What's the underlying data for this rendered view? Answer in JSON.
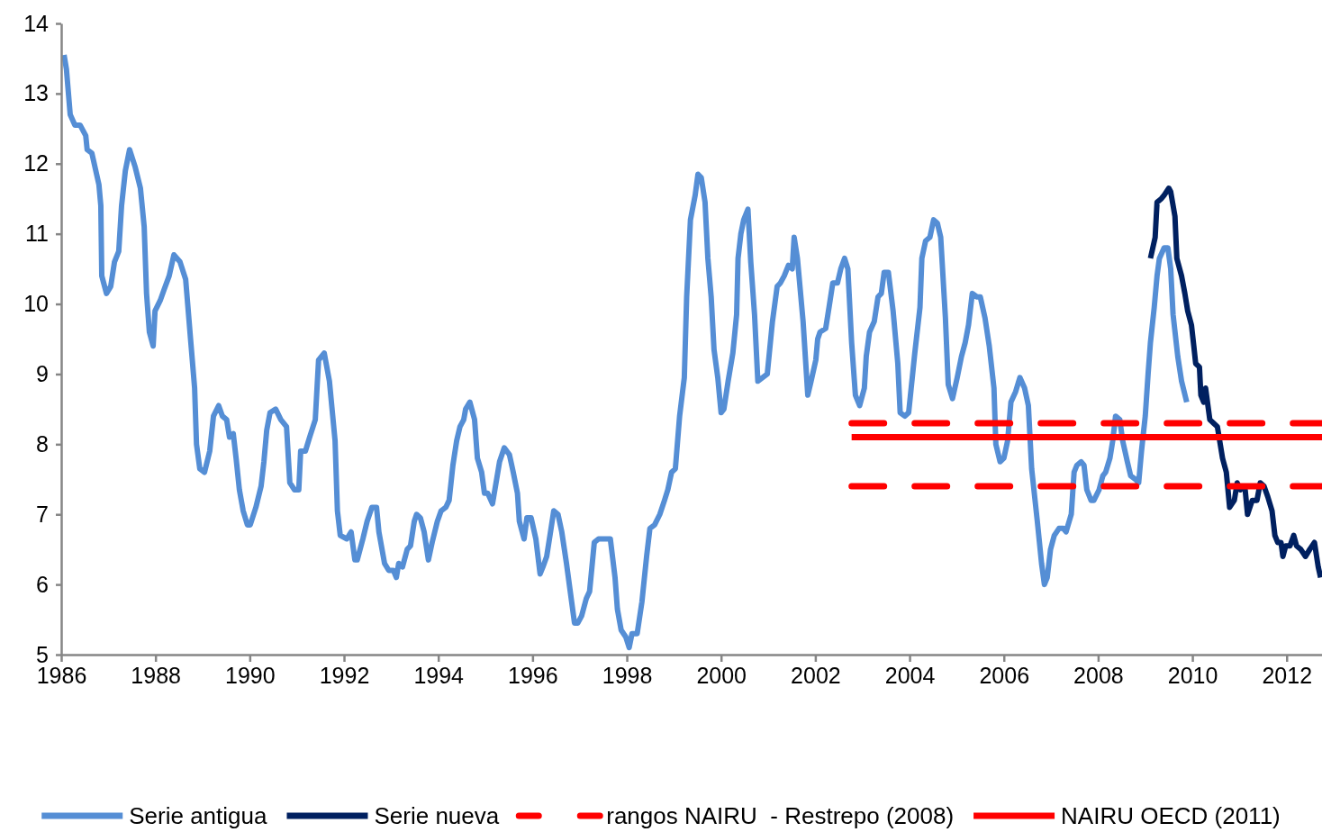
{
  "chart_data": {
    "type": "line",
    "xlim": [
      1986,
      2012.75
    ],
    "xticks": [
      1986,
      1988,
      1990,
      1992,
      1994,
      1996,
      1998,
      2000,
      2002,
      2004,
      2006,
      2008,
      2010,
      2012
    ],
    "ylim": [
      5,
      14
    ],
    "yticks": [
      5,
      6,
      7,
      8,
      9,
      10,
      11,
      12,
      13,
      14
    ],
    "grid": false,
    "legend": "bottom",
    "marker": "none",
    "series": [
      {
        "name": "Serie antigua",
        "color": "#558ed5",
        "line_style": "solid",
        "x": [
          1986.06,
          1986.11,
          1986.19,
          1986.29,
          1986.4,
          1986.52,
          1986.55,
          1986.65,
          1986.8,
          1986.84,
          1986.86,
          1986.96,
          1987.05,
          1987.13,
          1987.22,
          1987.28,
          1987.36,
          1987.45,
          1987.57,
          1987.68,
          1987.76,
          1987.81,
          1987.87,
          1987.95,
          1987.99,
          1988.1,
          1988.18,
          1988.29,
          1988.39,
          1988.52,
          1988.64,
          1988.75,
          1988.83,
          1988.87,
          1988.94,
          1989.04,
          1989.15,
          1989.23,
          1989.34,
          1989.42,
          1989.51,
          1989.57,
          1989.65,
          1989.71,
          1989.78,
          1989.86,
          1989.95,
          1990.01,
          1990.13,
          1990.24,
          1990.3,
          1990.36,
          1990.43,
          1990.55,
          1990.66,
          1990.78,
          1990.85,
          1990.95,
          1991.04,
          1991.08,
          1991.18,
          1991.27,
          1991.39,
          1991.46,
          1991.58,
          1991.69,
          1991.81,
          1991.86,
          1991.92,
          1992.06,
          1992.15,
          1992.23,
          1992.28,
          1992.4,
          1992.49,
          1992.59,
          1992.69,
          1992.74,
          1992.86,
          1992.95,
          1993.05,
          1993.11,
          1993.16,
          1993.24,
          1993.34,
          1993.41,
          1993.49,
          1993.54,
          1993.62,
          1993.7,
          1993.79,
          1993.87,
          1993.98,
          1994.06,
          1994.16,
          1994.23,
          1994.31,
          1994.39,
          1994.46,
          1994.54,
          1994.58,
          1994.67,
          1994.77,
          1994.83,
          1994.92,
          1994.98,
          1995.05,
          1995.15,
          1995.25,
          1995.3,
          1995.4,
          1995.51,
          1995.59,
          1995.68,
          1995.72,
          1995.82,
          1995.88,
          1995.97,
          1996.07,
          1996.16,
          1996.22,
          1996.3,
          1996.37,
          1996.45,
          1996.54,
          1996.62,
          1996.72,
          1996.79,
          1996.89,
          1996.96,
          1997.04,
          1997.14,
          1997.21,
          1997.31,
          1997.4,
          1997.56,
          1997.65,
          1997.75,
          1997.8,
          1997.88,
          1997.98,
          1998.05,
          1998.11,
          1998.22,
          1998.32,
          1998.42,
          1998.49,
          1998.59,
          1998.7,
          1998.8,
          1998.87,
          1998.95,
          1999.03,
          1999.12,
          1999.22,
          1999.27,
          1999.35,
          1999.45,
          1999.51,
          1999.58,
          1999.66,
          1999.72,
          1999.79,
          1999.85,
          1999.93,
          2000.0,
          2000.06,
          2000.15,
          2000.25,
          2000.33,
          2000.36,
          2000.42,
          2000.48,
          2000.57,
          2000.63,
          2000.71,
          2000.78,
          2000.88,
          2000.98,
          2001.09,
          2001.19,
          2001.26,
          2001.34,
          2001.43,
          2001.51,
          2001.55,
          2001.62,
          2001.74,
          2001.84,
          2001.91,
          2002.01,
          2002.05,
          2002.1,
          2002.22,
          2002.29,
          2002.37,
          2002.47,
          2002.54,
          2002.62,
          2002.69,
          2002.77,
          2002.85,
          2002.94,
          2003.04,
          2003.08,
          2003.15,
          2003.25,
          2003.33,
          2003.4,
          2003.46,
          2003.55,
          2003.65,
          2003.75,
          2003.8,
          2003.9,
          2003.98,
          2004.11,
          2004.22,
          2004.26,
          2004.34,
          2004.43,
          2004.51,
          2004.59,
          2004.66,
          2004.76,
          2004.82,
          2004.91,
          2005.01,
          2005.1,
          2005.18,
          2005.25,
          2005.33,
          2005.43,
          2005.5,
          2005.6,
          2005.69,
          2005.79,
          2005.83,
          2005.92,
          2006.0,
          2006.08,
          2006.15,
          2006.25,
          2006.34,
          2006.44,
          2006.52,
          2006.59,
          2006.71,
          2006.8,
          2006.86,
          2006.92,
          2006.99,
          2007.07,
          2007.17,
          2007.26,
          2007.32,
          2007.43,
          2007.49,
          2007.55,
          2007.64,
          2007.7,
          2007.76,
          2007.85,
          2007.91,
          2008.02,
          2008.1,
          2008.16,
          2008.25,
          2008.31,
          2008.37,
          2008.46,
          2008.52,
          2008.62,
          2008.69,
          2008.79,
          2008.86,
          2008.92,
          2009.0,
          2009.06,
          2009.11,
          2009.19,
          2009.25,
          2009.3,
          2009.4,
          2009.48,
          2009.54,
          2009.59,
          2009.69,
          2009.77,
          2009.88
        ],
        "values": [
          13.55,
          13.35,
          12.7,
          12.55,
          12.55,
          12.4,
          12.2,
          12.15,
          11.7,
          11.4,
          10.4,
          10.15,
          10.25,
          10.6,
          10.75,
          11.4,
          11.9,
          12.2,
          11.95,
          11.65,
          11.1,
          10.15,
          9.6,
          9.4,
          9.9,
          10.05,
          10.2,
          10.4,
          10.7,
          10.6,
          10.35,
          9.45,
          8.8,
          8.0,
          7.65,
          7.6,
          7.9,
          8.4,
          8.55,
          8.4,
          8.35,
          8.1,
          8.15,
          7.8,
          7.35,
          7.05,
          6.85,
          6.85,
          7.1,
          7.4,
          7.75,
          8.2,
          8.45,
          8.5,
          8.35,
          8.25,
          7.45,
          7.35,
          7.35,
          7.9,
          7.9,
          8.1,
          8.35,
          9.2,
          9.3,
          8.9,
          8.05,
          7.05,
          6.7,
          6.65,
          6.75,
          6.35,
          6.35,
          6.65,
          6.9,
          7.1,
          7.1,
          6.75,
          6.3,
          6.2,
          6.2,
          6.1,
          6.3,
          6.25,
          6.5,
          6.55,
          6.9,
          7.0,
          6.95,
          6.75,
          6.35,
          6.6,
          6.9,
          7.05,
          7.1,
          7.2,
          7.7,
          8.05,
          8.25,
          8.35,
          8.5,
          8.6,
          8.35,
          7.8,
          7.6,
          7.3,
          7.3,
          7.15,
          7.55,
          7.75,
          7.95,
          7.85,
          7.6,
          7.3,
          6.9,
          6.65,
          6.95,
          6.95,
          6.65,
          6.15,
          6.25,
          6.4,
          6.7,
          7.05,
          7.0,
          6.75,
          6.3,
          5.95,
          5.45,
          5.45,
          5.55,
          5.8,
          5.9,
          6.6,
          6.65,
          6.65,
          6.65,
          6.1,
          5.65,
          5.35,
          5.25,
          5.1,
          5.3,
          5.3,
          5.75,
          6.4,
          6.8,
          6.85,
          7.0,
          7.2,
          7.35,
          7.6,
          7.65,
          8.4,
          8.95,
          10.1,
          11.2,
          11.55,
          11.85,
          11.8,
          11.45,
          10.65,
          10.1,
          9.35,
          8.95,
          8.45,
          8.5,
          8.9,
          9.3,
          9.85,
          10.65,
          11.0,
          11.2,
          11.35,
          10.6,
          9.85,
          8.9,
          8.95,
          9.0,
          9.75,
          10.25,
          10.3,
          10.4,
          10.55,
          10.5,
          10.95,
          10.65,
          9.75,
          8.7,
          8.9,
          9.2,
          9.5,
          9.6,
          9.65,
          9.95,
          10.3,
          10.3,
          10.5,
          10.65,
          10.5,
          9.45,
          8.7,
          8.55,
          8.8,
          9.25,
          9.6,
          9.75,
          10.1,
          10.15,
          10.45,
          10.45,
          9.9,
          9.15,
          8.45,
          8.4,
          8.45,
          9.3,
          9.95,
          10.65,
          10.9,
          10.95,
          11.2,
          11.15,
          10.95,
          9.8,
          8.85,
          8.65,
          8.95,
          9.25,
          9.45,
          9.7,
          10.15,
          10.1,
          10.1,
          9.8,
          9.4,
          8.8,
          8.0,
          7.75,
          7.8,
          8.05,
          8.6,
          8.75,
          8.95,
          8.8,
          8.55,
          7.65,
          6.9,
          6.3,
          6.0,
          6.1,
          6.5,
          6.7,
          6.8,
          6.8,
          6.75,
          7.0,
          7.6,
          7.7,
          7.75,
          7.7,
          7.35,
          7.2,
          7.2,
          7.35,
          7.55,
          7.6,
          7.8,
          8.05,
          8.4,
          8.35,
          8.05,
          7.75,
          7.55,
          7.5,
          7.45,
          7.9,
          8.4,
          9.0,
          9.45,
          9.95,
          10.4,
          10.65,
          10.8,
          10.8,
          10.5,
          9.85,
          9.25,
          8.9,
          8.6
        ]
      },
      {
        "name": "Serie nueva",
        "color": "#002060",
        "line_style": "solid",
        "x": [
          2009.11,
          2009.21,
          2009.25,
          2009.34,
          2009.4,
          2009.5,
          2009.54,
          2009.63,
          2009.67,
          2009.77,
          2009.84,
          2009.9,
          2009.98,
          2010.03,
          2010.07,
          2010.15,
          2010.18,
          2010.24,
          2010.28,
          2010.37,
          2010.45,
          2010.53,
          2010.64,
          2010.72,
          2010.79,
          2010.89,
          2010.95,
          2011.02,
          2011.08,
          2011.12,
          2011.17,
          2011.27,
          2011.37,
          2011.44,
          2011.52,
          2011.6,
          2011.69,
          2011.75,
          2011.81,
          2011.88,
          2011.92,
          2011.98,
          2012.07,
          2012.15,
          2012.21,
          2012.3,
          2012.4,
          2012.49,
          2012.59,
          2012.67,
          2012.72
        ],
        "values": [
          10.65,
          10.95,
          11.45,
          11.5,
          11.55,
          11.65,
          11.6,
          11.25,
          10.65,
          10.4,
          10.15,
          9.9,
          9.7,
          9.4,
          9.15,
          9.1,
          8.7,
          8.6,
          8.8,
          8.35,
          8.3,
          8.25,
          7.8,
          7.6,
          7.1,
          7.2,
          7.45,
          7.35,
          7.4,
          7.35,
          7.0,
          7.2,
          7.2,
          7.45,
          7.4,
          7.25,
          7.05,
          6.7,
          6.6,
          6.6,
          6.4,
          6.55,
          6.55,
          6.7,
          6.55,
          6.5,
          6.4,
          6.5,
          6.6,
          6.25,
          6.1
        ]
      },
      {
        "name": "rangos NAIRU  - Restrepo (2008)",
        "color": "#ff0000",
        "line_style": "dashed",
        "x": [
          2002.77,
          2012.75
        ],
        "values": [
          8.3,
          8.3
        ]
      },
      {
        "color": "#ff0000",
        "line_style": "dashed",
        "x": [
          2002.77,
          2012.75
        ],
        "values": [
          7.4,
          7.4
        ]
      },
      {
        "name": "NAIRU OECD (2011)",
        "color": "#ff0000",
        "line_style": "solid",
        "x": [
          2002.77,
          2012.75
        ],
        "values": [
          8.1,
          8.1
        ]
      }
    ]
  }
}
